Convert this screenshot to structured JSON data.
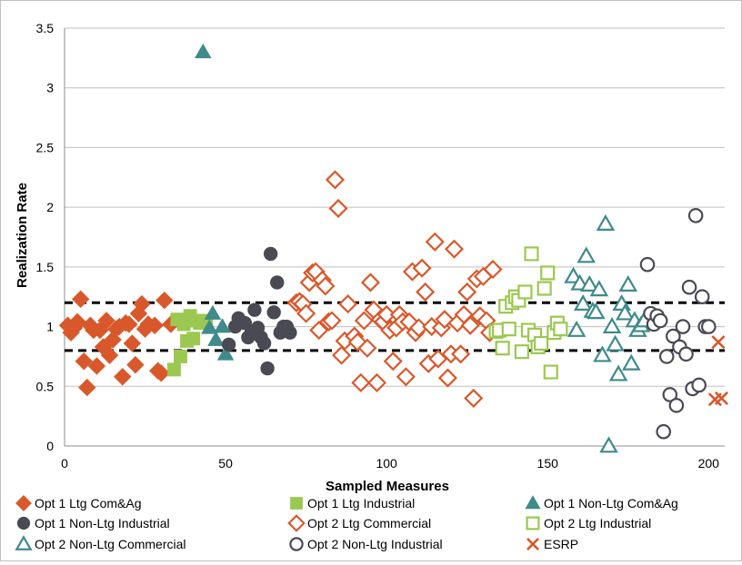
{
  "chart_data": {
    "type": "scatter",
    "xlabel": "Sampled Measures",
    "ylabel": "Realization Rate",
    "xlim": [
      0,
      205
    ],
    "ylim": [
      0,
      3.5
    ],
    "x_ticks": [
      0,
      50,
      100,
      150,
      200
    ],
    "y_ticks": [
      0,
      0.5,
      1,
      1.5,
      2,
      2.5,
      3,
      3.5
    ],
    "x_tick_labels": [
      "0",
      "50",
      "100",
      "150",
      "200"
    ],
    "y_tick_labels": [
      "0",
      "0.5",
      "1",
      "1.5",
      "2",
      "2.5",
      "3",
      "3.5"
    ],
    "grid": "horizontal",
    "legend_position": "bottom",
    "reference_lines": [
      {
        "y": 1.2,
        "style": "dashed",
        "color": "#000000"
      },
      {
        "y": 0.8,
        "style": "dashed",
        "color": "#000000"
      }
    ],
    "series": [
      {
        "name": "Opt 1 Ltg Com&Ag",
        "marker": "diamond",
        "filled": true,
        "color": "#d9582b",
        "points": [
          [
            1,
            1.01
          ],
          [
            2,
            0.95
          ],
          [
            3,
            0.99
          ],
          [
            4,
            1.04
          ],
          [
            5,
            1.23
          ],
          [
            6,
            0.71
          ],
          [
            7,
            0.49
          ],
          [
            8,
            1.01
          ],
          [
            9,
            0.97
          ],
          [
            10,
            0.67
          ],
          [
            11,
            0.97
          ],
          [
            12,
            0.83
          ],
          [
            13,
            1.05
          ],
          [
            14,
            0.76
          ],
          [
            15,
            0.89
          ],
          [
            16,
            0.98
          ],
          [
            17,
            1.0
          ],
          [
            18,
            0.58
          ],
          [
            19,
            1.03
          ],
          [
            20,
            1.02
          ],
          [
            21,
            0.86
          ],
          [
            22,
            0.68
          ],
          [
            23,
            1.11
          ],
          [
            24,
            1.19
          ],
          [
            25,
            0.98
          ],
          [
            26,
            1.02
          ],
          [
            28,
            1.01
          ],
          [
            29,
            0.63
          ],
          [
            30,
            0.61
          ],
          [
            31,
            1.22
          ],
          [
            33,
            1.02
          ]
        ]
      },
      {
        "name": "Opt 1 Ltg Industrial",
        "marker": "square",
        "filled": true,
        "color": "#9bc850",
        "points": [
          [
            34,
            0.64
          ],
          [
            35,
            1.06
          ],
          [
            36,
            0.75
          ],
          [
            37,
            1.02
          ],
          [
            38,
            0.88
          ],
          [
            39,
            1.09
          ],
          [
            40,
            0.9
          ],
          [
            41,
            1.05
          ],
          [
            42,
            1.03
          ],
          [
            44,
            1.05
          ]
        ]
      },
      {
        "name": "Opt 1 Non-Ltg Com&Ag",
        "marker": "triangle",
        "filled": true,
        "color": "#3f8a8a",
        "points": [
          [
            43,
            3.3
          ],
          [
            45,
            0.99
          ],
          [
            46,
            1.11
          ],
          [
            47,
            0.89
          ],
          [
            49,
            1.0
          ],
          [
            50,
            0.77
          ]
        ]
      },
      {
        "name": "Opt 1 Non-Ltg Industrial",
        "marker": "circle",
        "filled": true,
        "color": "#4a4a55",
        "points": [
          [
            51,
            0.85
          ],
          [
            53,
            1.0
          ],
          [
            54,
            1.07
          ],
          [
            56,
            1.03
          ],
          [
            57,
            0.91
          ],
          [
            58,
            0.95
          ],
          [
            59,
            1.14
          ],
          [
            60,
            0.99
          ],
          [
            61,
            0.91
          ],
          [
            62,
            0.86
          ],
          [
            63,
            0.65
          ],
          [
            64,
            1.61
          ],
          [
            65,
            1.12
          ],
          [
            66,
            1.37
          ],
          [
            67,
            0.95
          ],
          [
            68,
            1.0
          ],
          [
            69,
            1.0
          ],
          [
            70,
            0.95
          ]
        ]
      },
      {
        "name": "Opt 2 Ltg Commercial",
        "marker": "diamond",
        "filled": false,
        "color": "#d9582b",
        "points": [
          [
            72,
            1.2
          ],
          [
            73,
            1.21
          ],
          [
            74,
            1.19
          ],
          [
            75,
            1.11
          ],
          [
            76,
            1.37
          ],
          [
            77,
            1.45
          ],
          [
            78,
            1.46
          ],
          [
            79,
            0.97
          ],
          [
            80,
            1.39
          ],
          [
            81,
            1.34
          ],
          [
            82,
            1.04
          ],
          [
            83,
            1.05
          ],
          [
            84,
            2.23
          ],
          [
            85,
            1.99
          ],
          [
            86,
            0.76
          ],
          [
            87,
            0.88
          ],
          [
            88,
            1.19
          ],
          [
            90,
            0.92
          ],
          [
            91,
            0.87
          ],
          [
            92,
            0.53
          ],
          [
            93,
            1.05
          ],
          [
            94,
            0.82
          ],
          [
            95,
            1.37
          ],
          [
            96,
            1.14
          ],
          [
            97,
            0.53
          ],
          [
            98,
            1.06
          ],
          [
            99,
            1.04
          ],
          [
            100,
            1.1
          ],
          [
            101,
            0.97
          ],
          [
            102,
            0.71
          ],
          [
            103,
            0.99
          ],
          [
            104,
            1.1
          ],
          [
            105,
            1.04
          ],
          [
            106,
            0.58
          ],
          [
            107,
            1.04
          ],
          [
            108,
            1.46
          ],
          [
            109,
            0.95
          ],
          [
            110,
            0.99
          ],
          [
            111,
            1.49
          ],
          [
            112,
            1.29
          ],
          [
            113,
            0.69
          ],
          [
            114,
            1.0
          ],
          [
            115,
            1.71
          ],
          [
            116,
            0.73
          ],
          [
            117,
            0.99
          ],
          [
            118,
            1.06
          ],
          [
            119,
            0.57
          ],
          [
            120,
            0.77
          ],
          [
            121,
            1.65
          ],
          [
            122,
            1.03
          ],
          [
            123,
            0.77
          ],
          [
            124,
            1.1
          ],
          [
            125,
            1.29
          ],
          [
            126,
            1.01
          ],
          [
            127,
            0.4
          ],
          [
            128,
            1.4
          ],
          [
            129,
            1.09
          ],
          [
            130,
            1.42
          ],
          [
            131,
            1.05
          ],
          [
            132,
            0.95
          ],
          [
            133,
            1.48
          ]
        ]
      },
      {
        "name": "Opt 2 Ltg Industrial",
        "marker": "square",
        "filled": false,
        "color": "#9bc850",
        "points": [
          [
            134,
            0.96
          ],
          [
            135,
            0.97
          ],
          [
            136,
            0.82
          ],
          [
            137,
            1.17
          ],
          [
            138,
            0.98
          ],
          [
            139,
            1.2
          ],
          [
            140,
            1.25
          ],
          [
            141,
            1.22
          ],
          [
            142,
            0.79
          ],
          [
            143,
            1.29
          ],
          [
            144,
            0.97
          ],
          [
            145,
            1.61
          ],
          [
            146,
            0.93
          ],
          [
            147,
            0.83
          ],
          [
            148,
            0.86
          ],
          [
            149,
            1.32
          ],
          [
            150,
            1.45
          ],
          [
            151,
            0.62
          ],
          [
            152,
            0.95
          ],
          [
            153,
            1.03
          ],
          [
            154,
            0.98
          ]
        ]
      },
      {
        "name": "Opt 2 Non-Ltg Commercial",
        "marker": "triangle",
        "filled": false,
        "color": "#3f8a8a",
        "points": [
          [
            158,
            1.42
          ],
          [
            159,
            0.97
          ],
          [
            160,
            1.36
          ],
          [
            161,
            1.19
          ],
          [
            162,
            1.59
          ],
          [
            163,
            1.35
          ],
          [
            164,
            1.13
          ],
          [
            165,
            1.12
          ],
          [
            166,
            1.31
          ],
          [
            167,
            0.76
          ],
          [
            168,
            1.86
          ],
          [
            169,
            0.0
          ],
          [
            170,
            1.0
          ],
          [
            171,
            0.85
          ],
          [
            172,
            0.6
          ],
          [
            173,
            1.19
          ],
          [
            174,
            1.11
          ],
          [
            175,
            1.35
          ],
          [
            176,
            0.69
          ],
          [
            177,
            1.05
          ],
          [
            178,
            0.97
          ],
          [
            179,
            1.01
          ],
          [
            180,
            1.05
          ]
        ]
      },
      {
        "name": "Opt 2 Non-Ltg Industrial",
        "marker": "circle",
        "filled": false,
        "color": "#4a4a55",
        "points": [
          [
            181,
            1.52
          ],
          [
            182,
            1.11
          ],
          [
            183,
            1.02
          ],
          [
            184,
            1.09
          ],
          [
            185,
            1.05
          ],
          [
            186,
            0.12
          ],
          [
            187,
            0.75
          ],
          [
            188,
            0.43
          ],
          [
            189,
            0.92
          ],
          [
            190,
            0.34
          ],
          [
            191,
            0.83
          ],
          [
            192,
            1.0
          ],
          [
            193,
            0.77
          ],
          [
            194,
            1.33
          ],
          [
            195,
            0.48
          ],
          [
            196,
            1.93
          ],
          [
            197,
            0.51
          ],
          [
            198,
            1.25
          ],
          [
            199,
            1.0
          ],
          [
            200,
            1.0
          ]
        ]
      },
      {
        "name": "ESRP",
        "marker": "x",
        "filled": false,
        "color": "#d9582b",
        "points": [
          [
            203,
            0.87
          ],
          [
            202,
            0.39
          ],
          [
            204,
            0.4
          ]
        ]
      }
    ]
  }
}
